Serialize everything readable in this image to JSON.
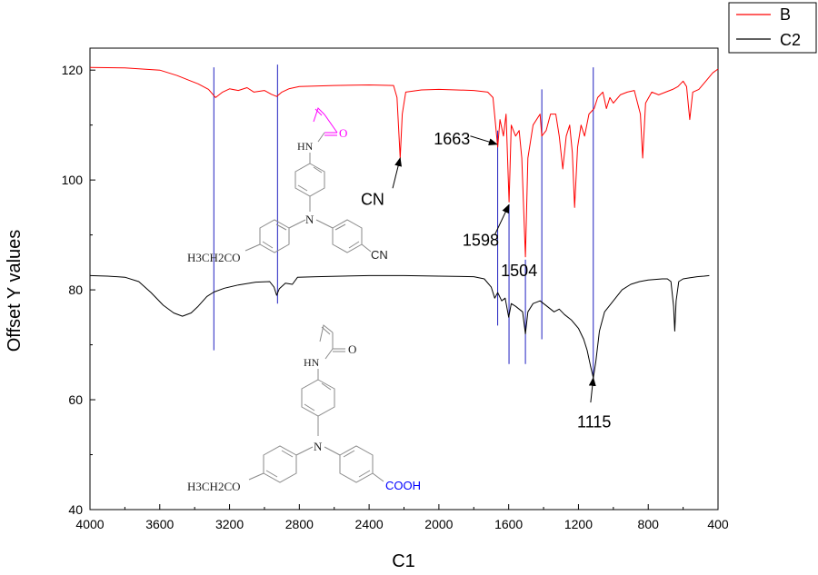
{
  "chart_data": {
    "type": "line",
    "xlabel": "C1",
    "ylabel": "Offset Y values",
    "xlim": [
      4000,
      400
    ],
    "ylim": [
      40,
      124
    ],
    "x_reversed": true,
    "x_ticks": [
      4000,
      3600,
      3200,
      2800,
      2400,
      2000,
      1600,
      1200,
      800,
      400
    ],
    "x_tick_labels": [
      "4000",
      "3600",
      "3200",
      "2800",
      "2400",
      "2000",
      "1600",
      "1200",
      "800",
      "400"
    ],
    "y_ticks": [
      40,
      60,
      80,
      100,
      120
    ],
    "y_tick_labels": [
      "40",
      "60",
      "80",
      "100",
      "120"
    ],
    "grid": false,
    "legend": {
      "placement": "top-right outside",
      "entries": [
        {
          "name": "B",
          "color": "#ff0000"
        },
        {
          "name": "C2",
          "color": "#000000"
        }
      ]
    },
    "series": [
      {
        "name": "B",
        "color": "#ff0000",
        "points": [
          [
            4000,
            120.5
          ],
          [
            3800,
            120.4
          ],
          [
            3600,
            120.0
          ],
          [
            3500,
            119.0
          ],
          [
            3420,
            118.0
          ],
          [
            3380,
            117.5
          ],
          [
            3320,
            116.5
          ],
          [
            3280,
            115.0
          ],
          [
            3240,
            116.0
          ],
          [
            3200,
            116.6
          ],
          [
            3150,
            116.3
          ],
          [
            3100,
            116.8
          ],
          [
            3060,
            116.0
          ],
          [
            3000,
            116.3
          ],
          [
            2960,
            115.6
          ],
          [
            2930,
            115.2
          ],
          [
            2900,
            116.0
          ],
          [
            2860,
            116.6
          ],
          [
            2800,
            117.0
          ],
          [
            2600,
            117.2
          ],
          [
            2400,
            117.3
          ],
          [
            2260,
            117.2
          ],
          [
            2240,
            115.0
          ],
          [
            2222,
            104.0
          ],
          [
            2210,
            112.0
          ],
          [
            2190,
            116.0
          ],
          [
            2100,
            116.4
          ],
          [
            2000,
            116.5
          ],
          [
            1900,
            116.4
          ],
          [
            1800,
            116.3
          ],
          [
            1720,
            116.0
          ],
          [
            1690,
            115.0
          ],
          [
            1663,
            106.0
          ],
          [
            1650,
            111.0
          ],
          [
            1630,
            108.0
          ],
          [
            1615,
            112.0
          ],
          [
            1598,
            96.0
          ],
          [
            1585,
            110.0
          ],
          [
            1560,
            108.0
          ],
          [
            1540,
            109.0
          ],
          [
            1525,
            104.0
          ],
          [
            1504,
            86.0
          ],
          [
            1490,
            104.0
          ],
          [
            1460,
            110.0
          ],
          [
            1420,
            112.0
          ],
          [
            1410,
            108.0
          ],
          [
            1385,
            109.0
          ],
          [
            1360,
            112.0
          ],
          [
            1330,
            112.0
          ],
          [
            1310,
            108.0
          ],
          [
            1290,
            102.0
          ],
          [
            1270,
            108.0
          ],
          [
            1250,
            110.0
          ],
          [
            1235,
            105.0
          ],
          [
            1222,
            95.0
          ],
          [
            1205,
            106.0
          ],
          [
            1185,
            110.0
          ],
          [
            1165,
            108.0
          ],
          [
            1140,
            112.0
          ],
          [
            1110,
            113.0
          ],
          [
            1090,
            115.0
          ],
          [
            1060,
            116.0
          ],
          [
            1040,
            113.0
          ],
          [
            1020,
            115.0
          ],
          [
            1000,
            114.0
          ],
          [
            960,
            115.5
          ],
          [
            920,
            116.0
          ],
          [
            880,
            116.3
          ],
          [
            845,
            112.0
          ],
          [
            832,
            104.0
          ],
          [
            815,
            114.0
          ],
          [
            780,
            116.0
          ],
          [
            740,
            115.5
          ],
          [
            700,
            116.0
          ],
          [
            660,
            116.5
          ],
          [
            630,
            117.0
          ],
          [
            600,
            118.0
          ],
          [
            580,
            117.0
          ],
          [
            562,
            111.0
          ],
          [
            545,
            116.0
          ],
          [
            510,
            116.5
          ],
          [
            470,
            118.0
          ],
          [
            430,
            119.5
          ],
          [
            400,
            120.2
          ]
        ]
      },
      {
        "name": "C2",
        "color": "#000000",
        "points": [
          [
            4000,
            82.6
          ],
          [
            3900,
            82.5
          ],
          [
            3800,
            82.3
          ],
          [
            3720,
            81.5
          ],
          [
            3650,
            79.5
          ],
          [
            3580,
            77.2
          ],
          [
            3520,
            75.8
          ],
          [
            3470,
            75.2
          ],
          [
            3420,
            75.8
          ],
          [
            3380,
            77.0
          ],
          [
            3330,
            78.8
          ],
          [
            3290,
            79.6
          ],
          [
            3230,
            80.3
          ],
          [
            3150,
            80.9
          ],
          [
            3050,
            81.4
          ],
          [
            2970,
            81.5
          ],
          [
            2945,
            80.5
          ],
          [
            2930,
            79.0
          ],
          [
            2915,
            80.2
          ],
          [
            2880,
            81.2
          ],
          [
            2840,
            81.0
          ],
          [
            2810,
            82.3
          ],
          [
            2700,
            82.4
          ],
          [
            2400,
            82.6
          ],
          [
            2200,
            82.6
          ],
          [
            2000,
            82.5
          ],
          [
            1800,
            82.4
          ],
          [
            1740,
            82.0
          ],
          [
            1700,
            80.5
          ],
          [
            1680,
            78.5
          ],
          [
            1663,
            79.5
          ],
          [
            1640,
            78.0
          ],
          [
            1620,
            78.5
          ],
          [
            1600,
            75.0
          ],
          [
            1585,
            77.5
          ],
          [
            1560,
            77.0
          ],
          [
            1540,
            76.5
          ],
          [
            1520,
            76.0
          ],
          [
            1504,
            72.0
          ],
          [
            1490,
            76.0
          ],
          [
            1460,
            77.5
          ],
          [
            1420,
            78.0
          ],
          [
            1380,
            77.0
          ],
          [
            1340,
            76.0
          ],
          [
            1310,
            76.5
          ],
          [
            1280,
            75.5
          ],
          [
            1240,
            74.5
          ],
          [
            1200,
            73.0
          ],
          [
            1170,
            71.0
          ],
          [
            1150,
            69.0
          ],
          [
            1130,
            66.0
          ],
          [
            1115,
            64.0
          ],
          [
            1100,
            67.0
          ],
          [
            1080,
            72.5
          ],
          [
            1050,
            76.0
          ],
          [
            1000,
            78.0
          ],
          [
            950,
            80.0
          ],
          [
            900,
            81.0
          ],
          [
            850,
            81.5
          ],
          [
            800,
            81.8
          ],
          [
            760,
            81.9
          ],
          [
            720,
            82.0
          ],
          [
            690,
            82.0
          ],
          [
            670,
            81.5
          ],
          [
            655,
            77.0
          ],
          [
            648,
            72.5
          ],
          [
            640,
            78.0
          ],
          [
            625,
            81.5
          ],
          [
            600,
            82.0
          ],
          [
            560,
            82.2
          ],
          [
            520,
            82.4
          ],
          [
            480,
            82.5
          ],
          [
            450,
            82.6
          ]
        ]
      }
    ],
    "reference_lines": [
      {
        "x": 3290,
        "y_from": 69.0,
        "y_to": 120.5,
        "color": "#2020c0"
      },
      {
        "x": 2925,
        "y_from": 77.5,
        "y_to": 121.0,
        "color": "#2020c0"
      },
      {
        "x": 1663,
        "y_from": 73.5,
        "y_to": 109.0,
        "color": "#2020c0"
      },
      {
        "x": 1598,
        "y_from": 66.5,
        "y_to": 95.5,
        "color": "#2020c0"
      },
      {
        "x": 1504,
        "y_from": 66.5,
        "y_to": 85.5,
        "color": "#2020c0"
      },
      {
        "x": 1410,
        "y_from": 71.0,
        "y_to": 116.5,
        "color": "#2020c0"
      },
      {
        "x": 1115,
        "y_from": 64.0,
        "y_to": 120.5,
        "color": "#2020c0"
      }
    ],
    "annotations": [
      {
        "text": "CN",
        "x": 2380,
        "y": 95.5,
        "arrow_from": [
          2265,
          98.5
        ],
        "arrow_to": [
          2222,
          104.0
        ]
      },
      {
        "text": "1663",
        "x": 1925,
        "y": 106.5,
        "arrow_from": [
          1820,
          108.0
        ],
        "arrow_to": [
          1667,
          106.5
        ]
      },
      {
        "text": "1598",
        "x": 1760,
        "y": 88.0,
        "arrow_from": [
          1680,
          90.0
        ],
        "arrow_to": [
          1598,
          95.5
        ]
      },
      {
        "text": "1504",
        "x": 1540,
        "y": 82.5,
        "arrow_from": null,
        "arrow_to": null
      },
      {
        "text": "1115",
        "x": 1110,
        "y": 55.0,
        "arrow_from": [
          1130,
          59.5
        ],
        "arrow_to": [
          1115,
          64.0
        ]
      }
    ],
    "structures": {
      "top": {
        "labels": {
          "nh": "HN",
          "o": "O",
          "n": "N",
          "cn": "CN",
          "ether": "H3CH2CO"
        },
        "colors": {
          "vinyl": "#ff00ff",
          "carbonyl_o": "#ff00ff",
          "bonds": "#8a8a8a"
        }
      },
      "bottom": {
        "labels": {
          "nh": "HN",
          "o": "O",
          "n": "N",
          "cooh": "COOH",
          "ether": "H3CH2CO"
        },
        "colors": {
          "cooh": "#0000ff",
          "bonds": "#8a8a8a"
        }
      }
    }
  }
}
